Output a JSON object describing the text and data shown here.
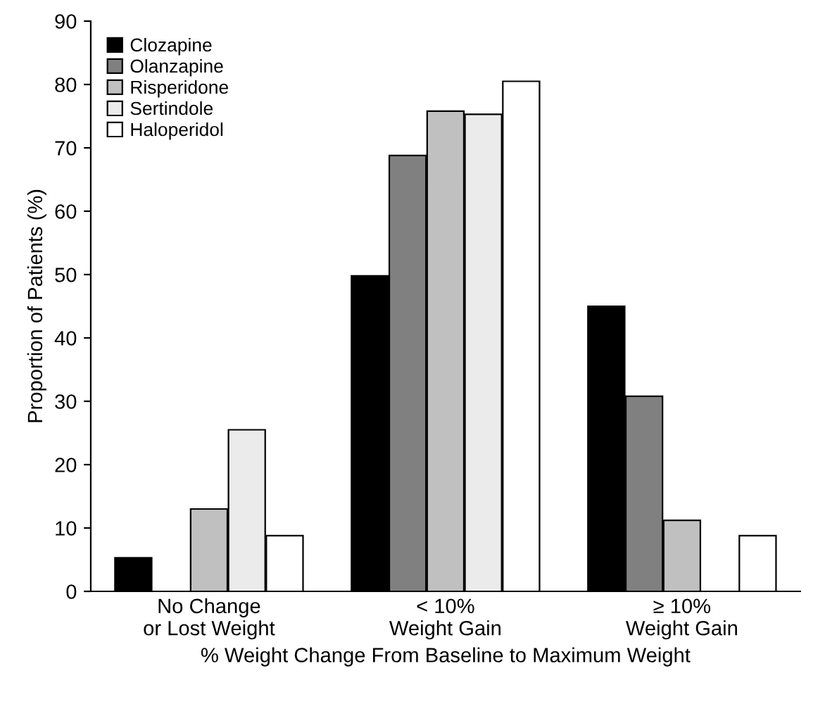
{
  "chart_data": {
    "type": "bar",
    "xlabel": "% Weight Change From Baseline to Maximum Weight",
    "ylabel": "Proportion of Patients (%)",
    "categories": [
      "No Change\nor Lost Weight",
      "< 10%\nWeight Gain",
      "≥ 10%\nWeight Gain"
    ],
    "series": [
      {
        "name": "Clozapine",
        "color": "#000000",
        "values": [
          5.3,
          49.8,
          45
        ]
      },
      {
        "name": "Olanzapine",
        "color": "#808080",
        "values": [
          null,
          68.8,
          30.8
        ]
      },
      {
        "name": "Risperidone",
        "color": "#c0c0c0",
        "values": [
          13,
          75.8,
          11.2
        ]
      },
      {
        "name": "Sertindole",
        "color": "#ebebeb",
        "values": [
          25.5,
          75.3,
          null
        ]
      },
      {
        "name": "Haloperidol",
        "color": "#ffffff",
        "values": [
          8.8,
          80.5,
          8.8
        ]
      }
    ],
    "ylim": [
      0,
      90
    ],
    "yticks": [
      0,
      10,
      20,
      30,
      40,
      50,
      60,
      70,
      80,
      90
    ],
    "grid": false,
    "legend": "top left"
  }
}
